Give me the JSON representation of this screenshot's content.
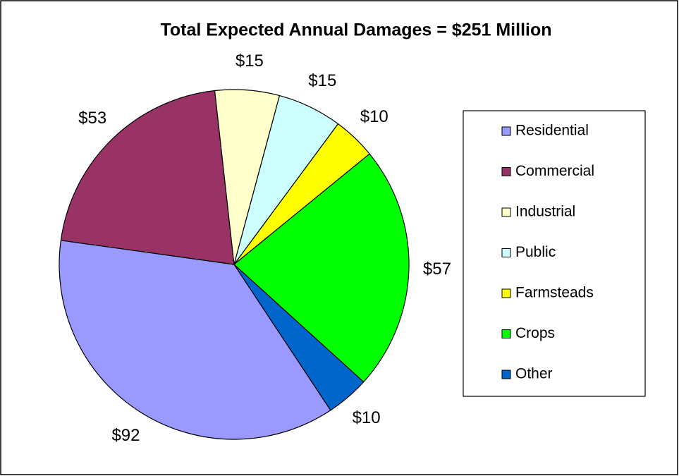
{
  "chart_data": {
    "type": "pie",
    "title": "Total Expected Annual Damages = $251 Million",
    "categories": [
      "Residential",
      "Commercial",
      "Industrial",
      "Public",
      "Farmsteads",
      "Crops",
      "Other"
    ],
    "values": [
      92,
      53,
      15,
      15,
      10,
      57,
      10
    ],
    "value_labels": [
      "$92",
      "$53",
      "$15",
      "$15",
      "$10",
      "$57",
      "$10"
    ],
    "colors": [
      "#9999ff",
      "#993366",
      "#ffffcc",
      "#ccffff",
      "#ffff00",
      "#00ff00",
      "#0066cc"
    ],
    "legend": "right"
  }
}
